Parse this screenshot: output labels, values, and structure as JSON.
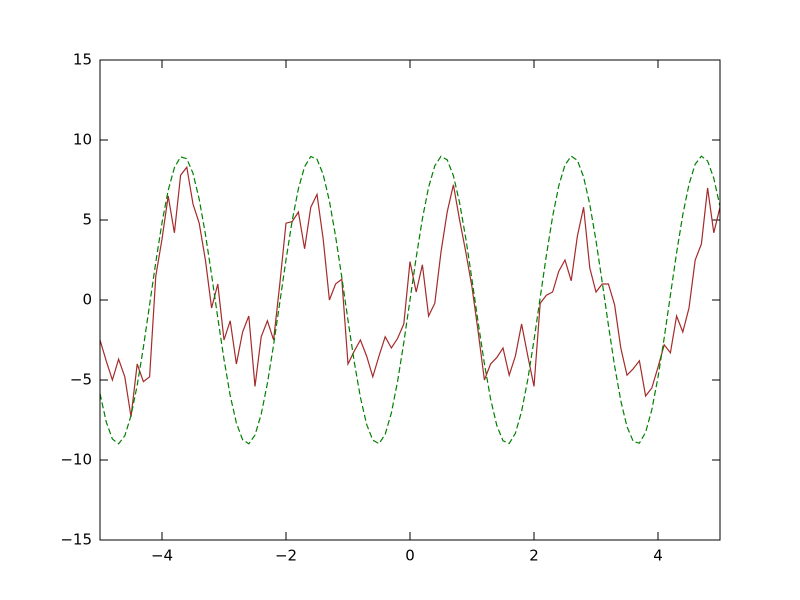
{
  "chart_data": {
    "type": "line",
    "x": [
      -5,
      -4.9,
      -4.8,
      -4.7,
      -4.6,
      -4.5,
      -4.4,
      -4.3,
      -4.2,
      -4.1,
      -4,
      -3.9,
      -3.8,
      -3.7,
      -3.6,
      -3.5,
      -3.4,
      -3.3,
      -3.2,
      -3.1,
      -3,
      -2.9,
      -2.8,
      -2.7,
      -2.6,
      -2.5,
      -2.4,
      -2.3,
      -2.2,
      -2.1,
      -2,
      -1.9,
      -1.8,
      -1.7,
      -1.6,
      -1.5,
      -1.4,
      -1.3,
      -1.2,
      -1.1,
      -1,
      -0.9,
      -0.8,
      -0.7,
      -0.6,
      -0.5,
      -0.4,
      -0.3,
      -0.2,
      -0.1,
      0,
      0.1,
      0.2,
      0.3,
      0.4,
      0.5,
      0.6,
      0.7,
      0.8,
      0.9,
      1,
      1.1,
      1.2,
      1.3,
      1.4,
      1.5,
      1.6,
      1.7,
      1.8,
      1.9,
      2,
      2.1,
      2.2,
      2.3,
      2.4,
      2.5,
      2.6,
      2.7,
      2.8,
      2.9,
      3,
      3.1,
      3.2,
      3.3,
      3.4,
      3.5,
      3.6,
      3.7,
      3.8,
      3.9,
      4,
      4.1,
      4.2,
      4.3,
      4.4,
      4.5,
      4.6,
      4.7,
      4.8,
      4.9,
      5
    ],
    "series": [
      {
        "color": "#a52a2a",
        "dash": "solid",
        "values": [
          -2.5,
          -3.8,
          -5,
          -3.7,
          -4.8,
          -7.3,
          -4,
          -5.1,
          -4.8,
          1.5,
          3.8,
          6.5,
          4.2,
          7.8,
          8.3,
          6,
          4.8,
          2.5,
          -0.5,
          1,
          -2.5,
          -1.3,
          -4,
          -2,
          -1,
          -5.4,
          -2.3,
          -1.3,
          -2.5,
          1,
          4.8,
          4.9,
          5.5,
          3.2,
          5.8,
          6.6,
          3.8,
          0,
          1,
          1.3,
          -4,
          -3.2,
          -2.5,
          -3.5,
          -4.8,
          -3.5,
          -2.3,
          -3,
          -2.4,
          -1.5,
          2.4,
          0.5,
          2.2,
          -1,
          -0.2,
          3,
          5.5,
          7.2,
          5,
          3,
          0.8,
          -2,
          -5,
          -4,
          -3.6,
          -3,
          -4.7,
          -3.5,
          -1.5,
          -3.5,
          -5.4,
          -0.2,
          0.3,
          0.5,
          1.8,
          2.5,
          1.2,
          4,
          5.8,
          2,
          0.5,
          1,
          1,
          -0.3,
          -3,
          -4.7,
          -4.3,
          -3.8,
          -6,
          -5.5,
          -4.2,
          -2.8,
          -3.3,
          -1,
          -2,
          -0.5,
          2.5,
          3.5,
          7,
          4.2,
          5.8
        ]
      },
      {
        "color": "#008000",
        "dash": "dashed",
        "values": [
          -5.85,
          -7.61,
          -8.69,
          -8.99,
          -8.49,
          -7.23,
          -5.33,
          -2.95,
          -0.3,
          2.37,
          4.83,
          6.86,
          8.27,
          8.95,
          8.83,
          7.92,
          6.3,
          4.12,
          1.57,
          -1.12,
          -3.71,
          -5.97,
          -7.69,
          -8.73,
          -8.99,
          -8.44,
          -7.14,
          -5.21,
          -2.8,
          -0.15,
          2.51,
          4.96,
          6.96,
          8.33,
          8.97,
          8.8,
          7.84,
          6.19,
          3.98,
          1.42,
          -1.27,
          -3.85,
          -6.08,
          -7.77,
          -8.76,
          -8.98,
          -8.39,
          -7.05,
          -5.08,
          -2.66,
          0,
          2.66,
          5.08,
          7.05,
          8.39,
          8.98,
          8.76,
          7.77,
          6.08,
          3.85,
          1.27,
          -1.42,
          -3.98,
          -6.19,
          -7.84,
          -8.8,
          -8.97,
          -8.33,
          -6.96,
          -4.96,
          -2.51,
          0.15,
          2.8,
          5.21,
          7.14,
          8.44,
          8.99,
          8.73,
          7.69,
          5.97,
          3.71,
          1.12,
          -1.57,
          -4.12,
          -6.3,
          -7.92,
          -8.83,
          -8.95,
          -8.27,
          -6.86,
          -4.83,
          -2.37,
          0.3,
          2.95,
          5.33,
          7.23,
          8.49,
          8.99,
          8.69,
          7.61,
          5.85
        ]
      }
    ],
    "xlim": [
      -5,
      5
    ],
    "ylim": [
      -15,
      15
    ],
    "xticks": [
      {
        "value": -4,
        "label": "−4"
      },
      {
        "value": -2,
        "label": "−2"
      },
      0,
      2,
      4
    ],
    "yticks": [
      {
        "value": -15,
        "label": "−15"
      },
      {
        "value": -10,
        "label": "−10"
      },
      {
        "value": -5,
        "label": "−5"
      },
      0,
      5,
      10,
      15
    ],
    "grid": false
  }
}
